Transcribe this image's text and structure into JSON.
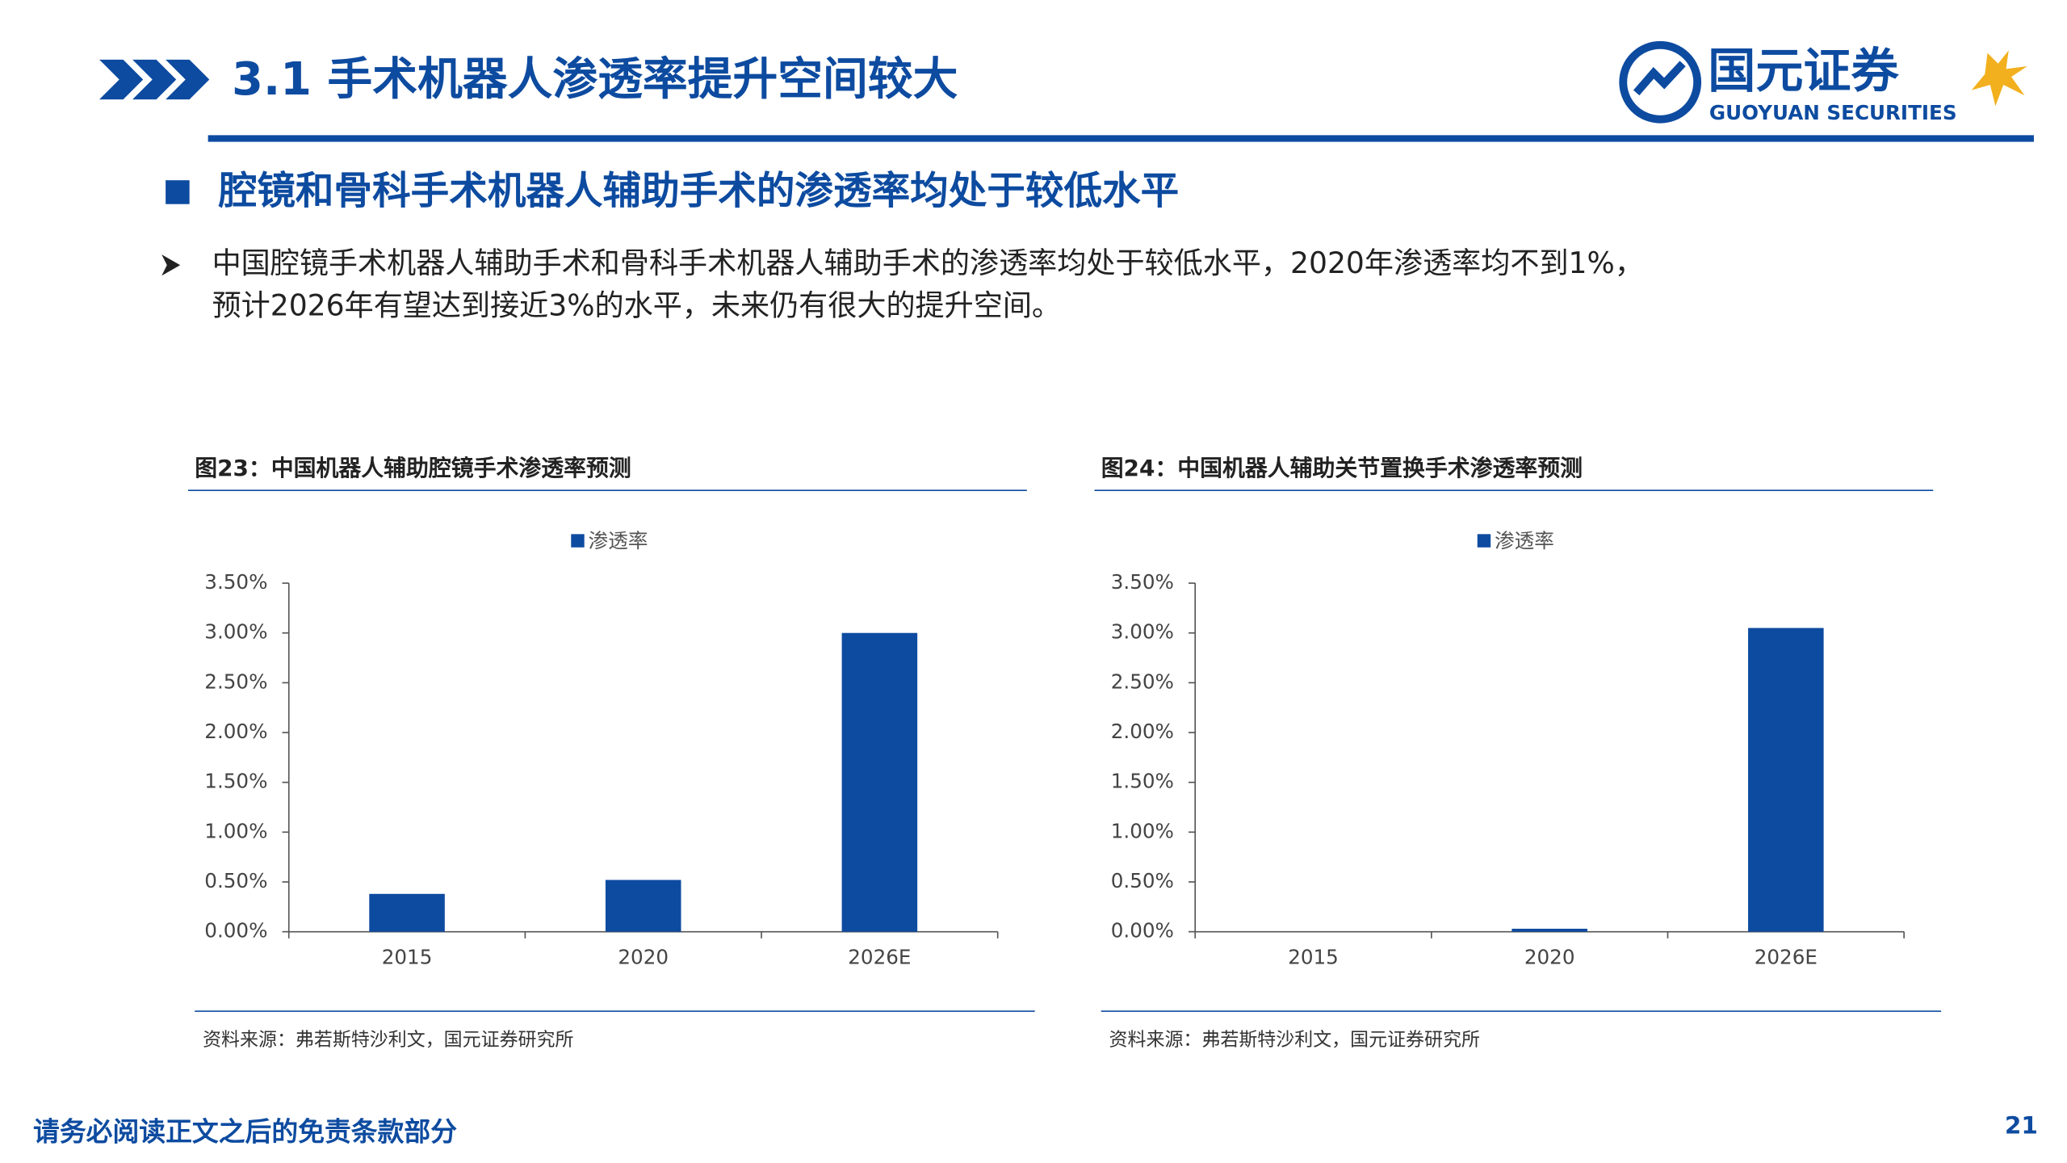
{
  "header": {
    "title": "3.1  手术机器人渗透率提升空间较大",
    "logo_name": "国元证券",
    "logo_subtitle": "GUOYUAN SECURITIES"
  },
  "section_heading": "腔镜和骨科手术机器人辅助手术的渗透率均处于较低水平",
  "bullet": {
    "lines": [
      "中国腔镜手术机器人辅助手术和骨科手术机器人辅助手术的渗透率均处于较低水平，2020年渗透率均不到1%，",
      "预计2026年有望达到接近3%的水平，未来仍有很大的提升空间。"
    ]
  },
  "chart_data": [
    {
      "type": "bar",
      "title": "图23：中国机器人辅助腔镜手术渗透率预测",
      "categories": [
        "2015",
        "2020",
        "2026E"
      ],
      "series": [
        {
          "name": "渗透率",
          "color": "#0d4ba0",
          "values": [
            0.38,
            0.52,
            3.0
          ]
        }
      ],
      "ylim": [
        0,
        3.5
      ],
      "yticks": [
        {
          "value": 0,
          "label": "0.00%"
        },
        {
          "value": 0.5,
          "label": "0.50%"
        },
        {
          "value": 1,
          "label": "1.00%"
        },
        {
          "value": 1.5,
          "label": "1.50%"
        },
        {
          "value": 2,
          "label": "2.00%"
        },
        {
          "value": 2.5,
          "label": "2.50%"
        },
        {
          "value": 3,
          "label": "3.00%"
        },
        {
          "value": 3.5,
          "label": "3.50%"
        }
      ],
      "grid": false,
      "legend": "top",
      "source": "资料来源：弗若斯特沙利文，国元证券研究所"
    },
    {
      "type": "bar",
      "title": "图24：中国机器人辅助关节置换手术渗透率预测",
      "categories": [
        "2015",
        "2020",
        "2026E"
      ],
      "series": [
        {
          "name": "渗透率",
          "color": "#0d4ba0",
          "values": [
            0,
            0.03,
            3.05
          ]
        }
      ],
      "ylim": [
        0,
        3.5
      ],
      "yticks": [
        {
          "value": 0,
          "label": "0.00%"
        },
        {
          "value": 0.5,
          "label": "0.50%"
        },
        {
          "value": 1,
          "label": "1.00%"
        },
        {
          "value": 1.5,
          "label": "1.50%"
        },
        {
          "value": 2,
          "label": "2.00%"
        },
        {
          "value": 2.5,
          "label": "2.50%"
        },
        {
          "value": 3,
          "label": "3.00%"
        },
        {
          "value": 3.5,
          "label": "3.50%"
        }
      ],
      "grid": false,
      "legend": "top",
      "source": "资料来源：弗若斯特沙利文，国元证券研究所"
    }
  ],
  "footer": {
    "disclaimer": "请务必阅读正文之后的免责条款部分",
    "page_number": "21"
  }
}
